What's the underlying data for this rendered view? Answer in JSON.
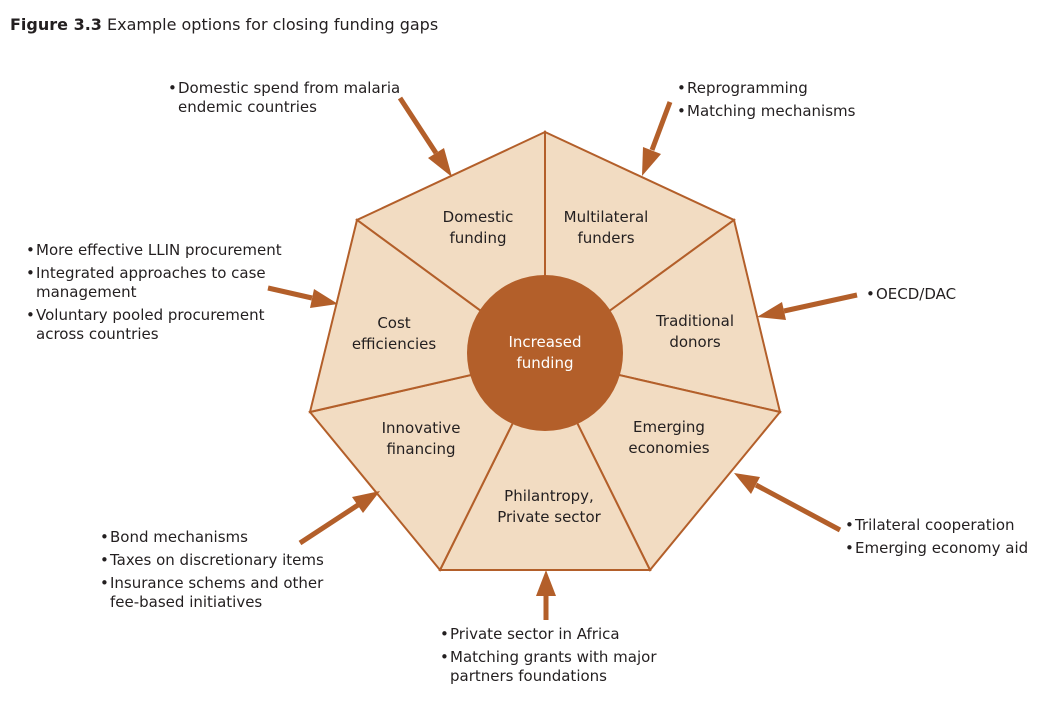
{
  "figure": {
    "label": "Figure 3.3",
    "title": "Example options for closing funding gaps"
  },
  "center": {
    "lines": [
      "Increased",
      "funding"
    ]
  },
  "segments": [
    {
      "id": "domestic-funding",
      "lines": [
        "Domestic",
        "funding"
      ]
    },
    {
      "id": "multilateral-funders",
      "lines": [
        "Multilateral",
        "funders"
      ]
    },
    {
      "id": "traditional-donors",
      "lines": [
        "Traditional",
        "donors"
      ]
    },
    {
      "id": "emerging-economies",
      "lines": [
        "Emerging",
        "economies"
      ]
    },
    {
      "id": "philantropy-private-sector",
      "lines": [
        "Philantropy,",
        "Private sector"
      ]
    },
    {
      "id": "innovative-financing",
      "lines": [
        "Innovative",
        "financing"
      ]
    },
    {
      "id": "cost-efficiencies",
      "lines": [
        "Cost",
        "efficiencies"
      ]
    }
  ],
  "callouts": [
    {
      "id": "domestic-funding",
      "bullets": [
        [
          "Domestic spend from malaria",
          "endemic countries"
        ]
      ]
    },
    {
      "id": "multilateral-funders",
      "bullets": [
        [
          "Reprogramming"
        ],
        [
          "Matching mechanisms"
        ]
      ]
    },
    {
      "id": "traditional-donors",
      "bullets": [
        [
          "OECD/DAC"
        ]
      ]
    },
    {
      "id": "emerging-economies",
      "bullets": [
        [
          "Trilateral cooperation"
        ],
        [
          "Emerging economy aid"
        ]
      ]
    },
    {
      "id": "philantropy-private-sector",
      "bullets": [
        [
          "Private sector in Africa"
        ],
        [
          "Matching grants with major",
          "partners foundations"
        ]
      ]
    },
    {
      "id": "innovative-financing",
      "bullets": [
        [
          "Bond mechanisms"
        ],
        [
          "Taxes on discretionary items"
        ],
        [
          "Insurance schems and other",
          "fee-based initiatives"
        ]
      ]
    },
    {
      "id": "cost-efficiencies",
      "bullets": [
        [
          "More effective LLIN procurement"
        ],
        [
          "Integrated approaches to case",
          "management"
        ],
        [
          "Voluntary pooled procurement",
          "across countries"
        ]
      ]
    }
  ],
  "colors": {
    "accent": "#b35f2a",
    "segment_fill": "#f2dcc2",
    "text": "#231f20",
    "hub_text": "#ffffff"
  }
}
